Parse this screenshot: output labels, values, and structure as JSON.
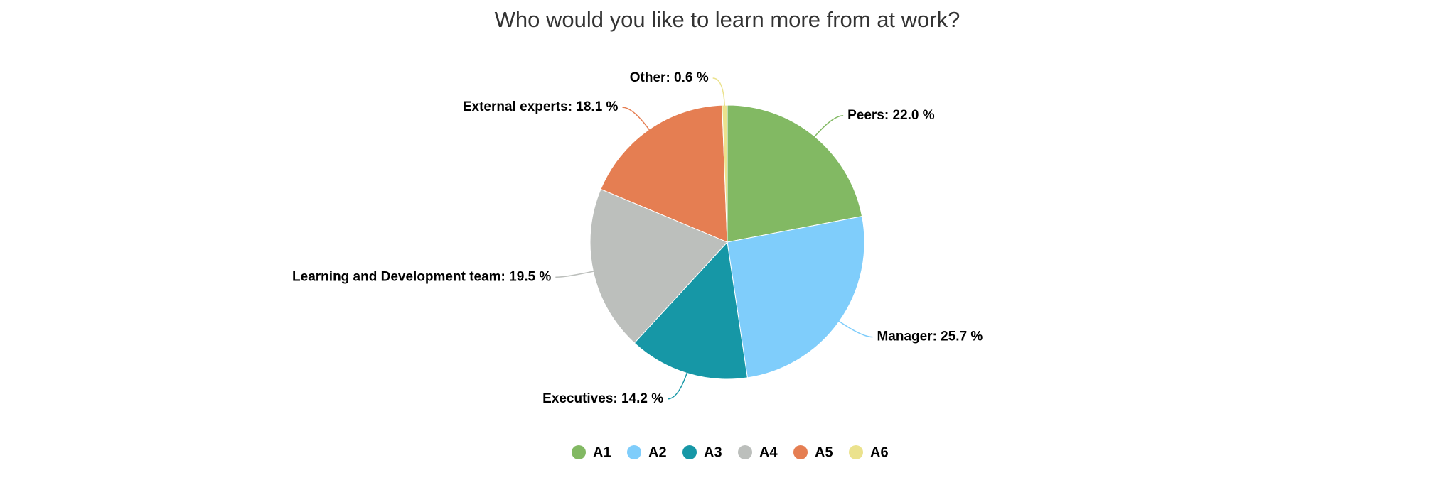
{
  "chart_data": {
    "type": "pie",
    "title": "Who would you like to learn more from at work?",
    "categories": [
      "A1",
      "A2",
      "A3",
      "A4",
      "A5",
      "A6"
    ],
    "values": [
      22.0,
      25.7,
      14.2,
      19.5,
      18.1,
      0.6
    ],
    "value_labels": [
      "Peers: 22.0 %",
      "Manager: 25.7 %",
      "Executives: 14.2 %",
      "Learning and Development team: 19.5 %",
      "External experts: 18.1 %",
      "Other: 0.6 %"
    ],
    "colors": [
      "#82b963",
      "#7fcdfb",
      "#1697a6",
      "#bcbfbc",
      "#e57e52",
      "#ebe28d"
    ]
  }
}
